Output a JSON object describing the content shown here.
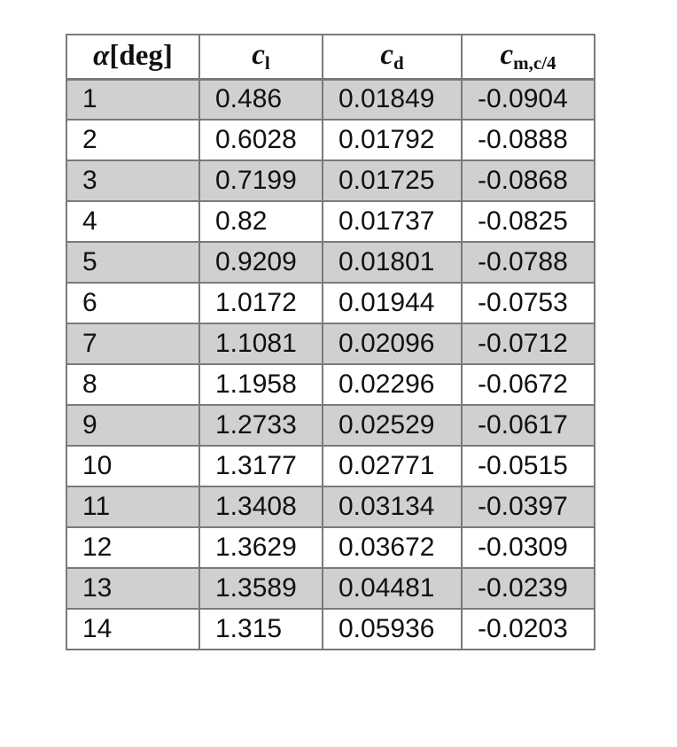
{
  "table": {
    "header": [
      {
        "symbol": "α",
        "unit": "[deg]"
      },
      {
        "symbol": "c",
        "sub": "l"
      },
      {
        "symbol": "c",
        "sub": "d"
      },
      {
        "symbol": "c",
        "sub": "m,c/4"
      }
    ],
    "rows": [
      [
        "1",
        "0.486",
        "0.01849",
        "-0.0904"
      ],
      [
        "2",
        "0.6028",
        "0.01792",
        "-0.0888"
      ],
      [
        "3",
        "0.7199",
        "0.01725",
        "-0.0868"
      ],
      [
        "4",
        "0.82",
        "0.01737",
        "-0.0825"
      ],
      [
        "5",
        "0.9209",
        "0.01801",
        "-0.0788"
      ],
      [
        "6",
        "1.0172",
        "0.01944",
        "-0.0753"
      ],
      [
        "7",
        "1.1081",
        "0.02096",
        "-0.0712"
      ],
      [
        "8",
        "1.1958",
        "0.02296",
        "-0.0672"
      ],
      [
        "9",
        "1.2733",
        "0.02529",
        "-0.0617"
      ],
      [
        "10",
        "1.3177",
        "0.02771",
        "-0.0515"
      ],
      [
        "11",
        "1.3408",
        "0.03134",
        "-0.0397"
      ],
      [
        "12",
        "1.3629",
        "0.03672",
        "-0.0309"
      ],
      [
        "13",
        "1.3589",
        "0.04481",
        "-0.0239"
      ],
      [
        "14",
        "1.315",
        "0.05936",
        "-0.0203"
      ]
    ]
  }
}
